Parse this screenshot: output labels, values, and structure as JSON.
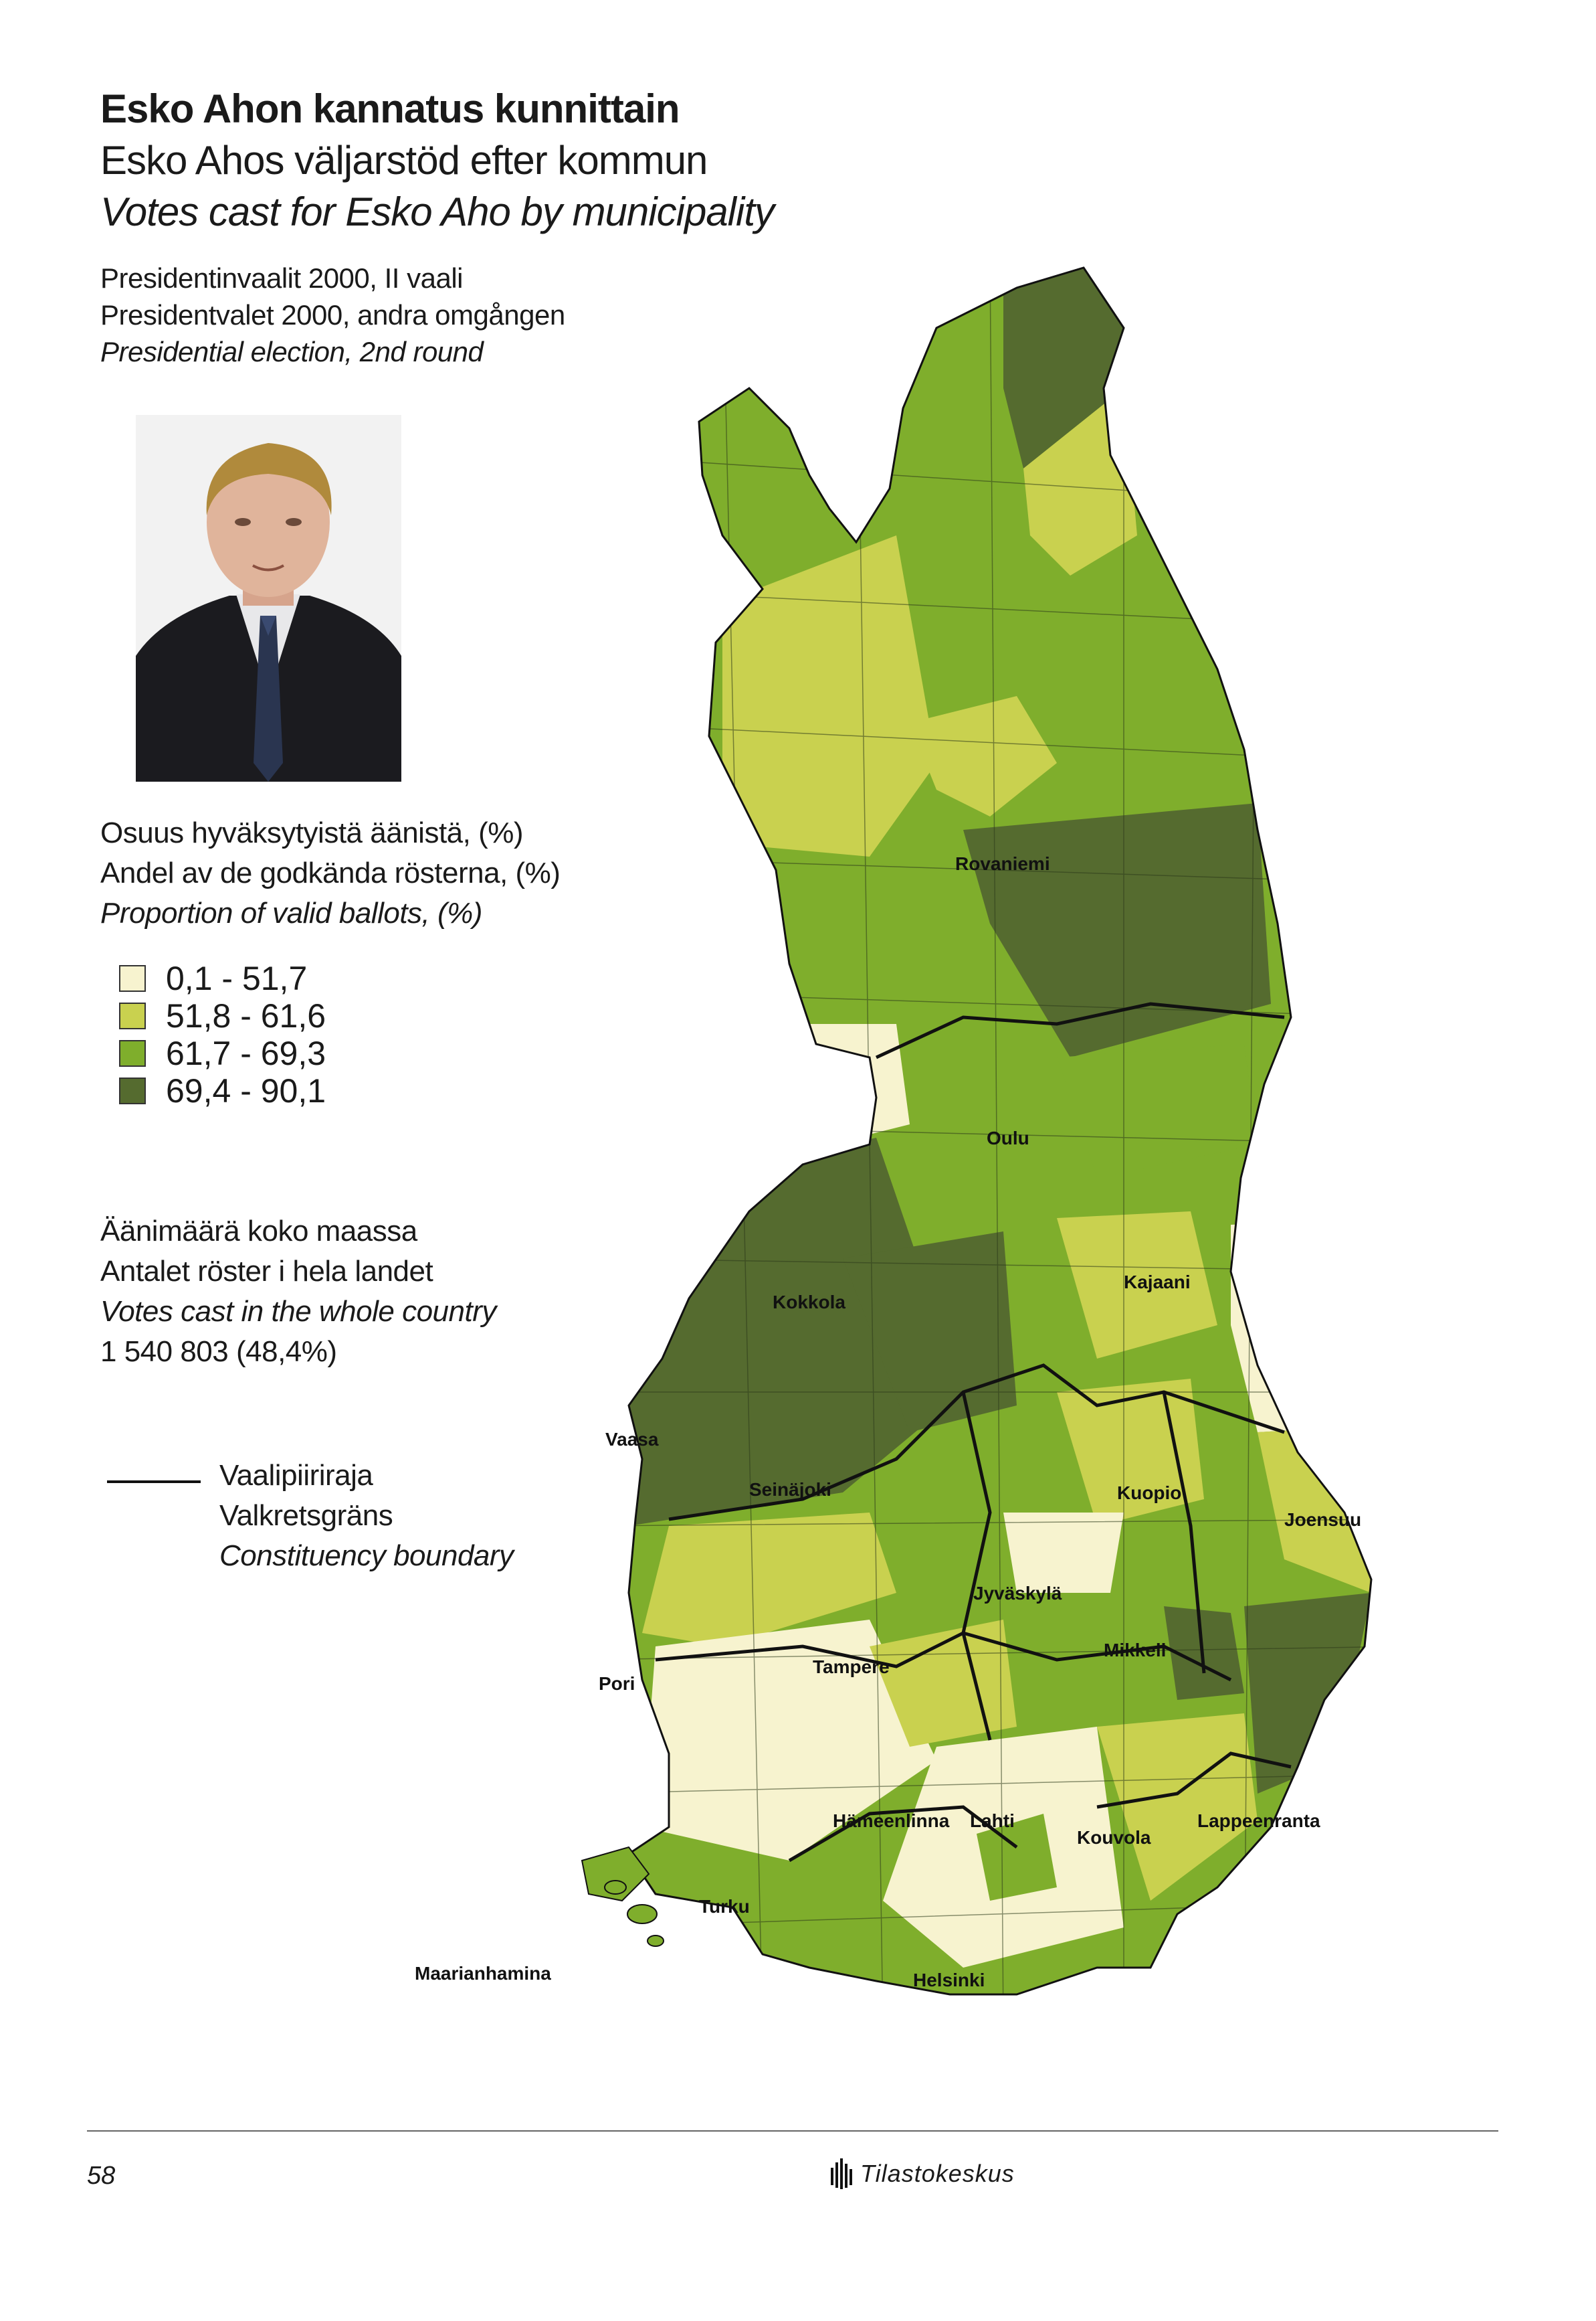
{
  "titles": {
    "fi": "Esko Ahon kannatus kunnittain",
    "sv": "Esko Ahos väljarstöd efter kommun",
    "en": "Votes cast for Esko Aho by municipality"
  },
  "subtitle": {
    "fi": "Presidentinvaalit 2000, II vaali",
    "sv": "Presidentvalet 2000, andra omgången",
    "en": "Presidential election, 2nd round"
  },
  "legend": {
    "head_fi": "Osuus hyväksytyistä äänistä, (%)",
    "head_sv": "Andel av de godkända rösterna, (%)",
    "head_en": "Proportion of valid ballots, (%)",
    "classes": [
      {
        "label": "0,1 - 51,7",
        "color": "#f7f3cf"
      },
      {
        "label": "51,8 - 61,6",
        "color": "#c9d14f"
      },
      {
        "label": "61,7 - 69,3",
        "color": "#7fae2c"
      },
      {
        "label": "69,4 - 90,1",
        "color": "#556b2f"
      }
    ]
  },
  "votes_total": {
    "fi": "Äänimäärä koko maassa",
    "sv": "Antalet röster i hela landet",
    "en": "Votes cast in the whole country",
    "value": "1 540 803 (48,4%)"
  },
  "boundary": {
    "fi": "Vaalipiiriraja",
    "sv": "Valkretsgräns",
    "en": "Constituency boundary"
  },
  "cities": [
    "Rovaniemi",
    "Oulu",
    "Kokkola",
    "Kajaani",
    "Vaasa",
    "Seinäjoki",
    "Kuopio",
    "Joensuu",
    "Jyväskylä",
    "Pori",
    "Tampere",
    "Mikkeli",
    "Hämeenlinna",
    "Lahti",
    "Kouvola",
    "Lappeenranta",
    "Turku",
    "Maarianhamina",
    "Helsinki"
  ],
  "footer": {
    "page": "58",
    "publisher": "Tilastokeskus"
  }
}
